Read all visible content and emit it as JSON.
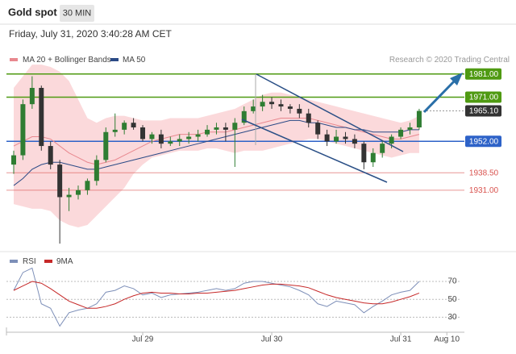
{
  "header": {
    "title": "Gold spot",
    "interval": "30 MIN",
    "datetime": "Friday, July 31, 2020 3:40:28 AM CET"
  },
  "chart_data": [
    {
      "type": "candlestick",
      "credit": "Research © 2020 Trading Central",
      "categories": [
        null,
        null,
        null,
        null,
        null,
        null,
        null,
        null,
        null,
        null,
        null,
        null,
        null,
        null,
        "Jul 29",
        null,
        null,
        null,
        null,
        null,
        null,
        null,
        null,
        null,
        null,
        null,
        null,
        null,
        "Jul 30",
        null,
        null,
        null,
        null,
        null,
        null,
        null,
        null,
        null,
        null,
        null,
        null,
        null,
        "Jul 31",
        null,
        null,
        null,
        null,
        "Aug 10"
      ],
      "open": [
        1942,
        1946,
        1968,
        1975,
        1950,
        1942,
        1928,
        1929,
        1931,
        1935,
        1944,
        1956,
        1957,
        1960,
        1958,
        1953,
        1955,
        1951,
        1952,
        1953,
        1954,
        1955,
        1957,
        1958,
        1957,
        1960,
        1965,
        1967,
        1969,
        1968,
        1967,
        1966,
        1964,
        1960,
        1955,
        1952,
        1954,
        1953,
        1951,
        1943,
        1947,
        1951,
        1954,
        1957,
        1958,
        null,
        null,
        null
      ],
      "high": [
        1948,
        1970,
        1980,
        1976,
        1952,
        1944,
        1932,
        1933,
        1936,
        1946,
        1958,
        1964,
        1961,
        1962,
        1959,
        1956,
        1957,
        1954,
        1955,
        1956,
        1957,
        1959,
        1960,
        1960,
        1962,
        1967,
        1970,
        1972,
        1971,
        1970,
        1968,
        1968,
        1966,
        1961,
        1957,
        1957,
        1956,
        1955,
        1952,
        1949,
        1952,
        1955,
        1958,
        1960,
        1966,
        null,
        null,
        null
      ],
      "low": [
        1938,
        1944,
        1966,
        1948,
        1940,
        1908,
        1922,
        1927,
        1929,
        1933,
        1943,
        1954,
        1955,
        1957,
        1952,
        1951,
        1949,
        1950,
        1950,
        1951,
        1952,
        1954,
        1955,
        1952,
        1941,
        1959,
        1964,
        1965,
        1966,
        1965,
        1964,
        1962,
        1958,
        1953,
        1950,
        1951,
        1951,
        1949,
        1940,
        1941,
        1945,
        1949,
        1953,
        1955,
        1957,
        null,
        null,
        null
      ],
      "close": [
        1946,
        1968,
        1975,
        1950,
        1942,
        1928,
        1929,
        1931,
        1935,
        1944,
        1956,
        1957,
        1960,
        1958,
        1953,
        1955,
        1951,
        1952,
        1953,
        1954,
        1955,
        1957,
        1958,
        1957,
        1960,
        1965,
        1967,
        1969,
        1968,
        1967,
        1966,
        1964,
        1960,
        1955,
        1952,
        1954,
        1953,
        1951,
        1943,
        1947,
        1951,
        1954,
        1957,
        1958,
        1965.1,
        null,
        null,
        null
      ],
      "up_color": "#2f7d32",
      "down_color": "#333333",
      "series": [
        {
          "name": "MA 20 + Bollinger Bands",
          "color": "#e8888f",
          "band_color": "#fbd9db",
          "values": [
            1950,
            1952,
            1954,
            1954,
            1953,
            1950,
            1947,
            1945,
            1943,
            1942,
            1943,
            1944,
            1946,
            1948,
            1950,
            1952,
            1953,
            1954,
            1955,
            1955,
            1955,
            1956,
            1956,
            1956,
            1957,
            1958,
            1959,
            1960,
            1961,
            1962,
            1962,
            1962,
            1962,
            1961,
            1960,
            1959,
            1958,
            1957,
            1956,
            1955,
            1954,
            1953,
            1953,
            1954,
            1955,
            null,
            null,
            null
          ],
          "upper": [
            1975,
            1980,
            1985,
            1985,
            1984,
            1982,
            1978,
            1970,
            1962,
            1960,
            1962,
            1963,
            1963,
            1962,
            1961,
            1961,
            1961,
            1962,
            1962,
            1962,
            1962,
            1963,
            1964,
            1965,
            1966,
            1968,
            1970,
            1972,
            1973,
            1973,
            1972,
            1971,
            1970,
            1969,
            1968,
            1967,
            1966,
            1965,
            1964,
            1963,
            1962,
            1961,
            1960,
            1961,
            1963,
            null,
            null,
            null
          ],
          "lower": [
            1925,
            1924,
            1923,
            1923,
            1922,
            1918,
            1916,
            1915,
            1916,
            1920,
            1924,
            1928,
            1932,
            1938,
            1942,
            1945,
            1946,
            1947,
            1948,
            1948,
            1948,
            1949,
            1949,
            1948,
            1947,
            1948,
            1948,
            1948,
            1949,
            1950,
            1951,
            1952,
            1953,
            1953,
            1952,
            1951,
            1950,
            1949,
            1948,
            1947,
            1946,
            1945,
            1946,
            1947,
            1947,
            null,
            null,
            null
          ]
        },
        {
          "name": "MA 50",
          "color": "#2b4a86",
          "values": [
            1933,
            1936,
            1940,
            1942,
            1943,
            1943,
            1942,
            1941,
            1940,
            1940,
            1941,
            1942,
            1943,
            1944,
            1945,
            1946,
            1947,
            1948,
            1949,
            1950,
            1951,
            1952,
            1953,
            1954,
            1955,
            1956,
            1957,
            1958,
            1959,
            1960,
            1961,
            1961,
            1960,
            1960,
            1959,
            1958,
            1958,
            1957,
            1957,
            1956,
            1956,
            1956,
            1956,
            1957,
            1957,
            null,
            null,
            null
          ]
        }
      ],
      "ylim": [
        1907,
        1992
      ],
      "levels": [
        {
          "value": 1981,
          "label": "1981.00",
          "color": "#4f9a12",
          "badge": true
        },
        {
          "value": 1971,
          "label": "1971.00",
          "color": "#4f9a12",
          "badge": true
        },
        {
          "value": 1965.1,
          "label": "1965.10",
          "color": "#333333",
          "badge": true
        },
        {
          "value": 1952,
          "label": "1952.00",
          "color": "#2d62c8",
          "badge": true
        },
        {
          "value": 1938.5,
          "label": "1938.50",
          "color": "#d9534f",
          "badge": false
        },
        {
          "value": 1931,
          "label": "1931.00",
          "color": "#d9534f",
          "badge": false
        }
      ]
    },
    {
      "type": "line",
      "series": [
        {
          "name": "RSI",
          "color": "#7d8fb8",
          "values": [
            60,
            80,
            85,
            45,
            40,
            20,
            35,
            38,
            40,
            45,
            58,
            60,
            65,
            62,
            55,
            57,
            52,
            55,
            56,
            57,
            58,
            60,
            62,
            60,
            62,
            68,
            70,
            70,
            68,
            66,
            64,
            60,
            55,
            45,
            42,
            48,
            46,
            44,
            35,
            42,
            48,
            55,
            58,
            60,
            70,
            null,
            null,
            null
          ]
        },
        {
          "name": "9MA",
          "color": "#c62828",
          "values": [
            60,
            65,
            70,
            68,
            62,
            55,
            48,
            44,
            40,
            40,
            42,
            45,
            50,
            54,
            57,
            58,
            57,
            57,
            56,
            56,
            57,
            57,
            58,
            59,
            60,
            62,
            64,
            66,
            67,
            67,
            66,
            65,
            63,
            59,
            55,
            52,
            50,
            48,
            46,
            45,
            45,
            47,
            50,
            53,
            57,
            null,
            null,
            null
          ]
        }
      ],
      "ylim": [
        15,
        98
      ],
      "yticks": [
        70,
        50,
        30
      ],
      "grid": true
    }
  ]
}
